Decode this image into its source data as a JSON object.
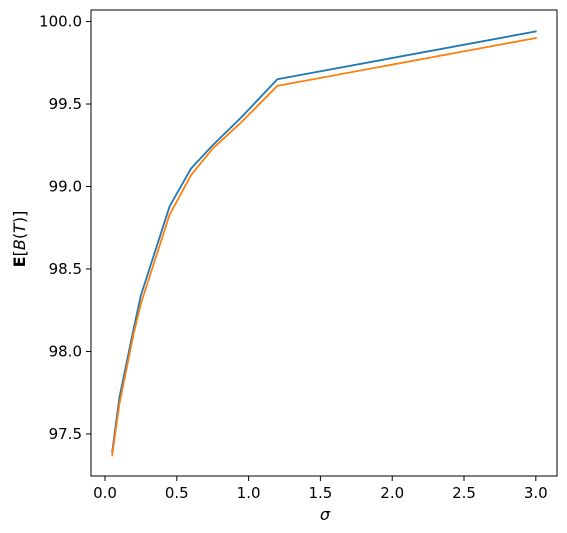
{
  "chart_data": {
    "type": "line",
    "xlim": [
      -0.0975,
      3.1475
    ],
    "ylim": [
      97.245,
      100.07
    ],
    "xticks": [
      "0.0",
      "0.5",
      "1.0",
      "1.5",
      "2.0",
      "2.5",
      "3.0"
    ],
    "yticks": [
      "97.5",
      "98.0",
      "98.5",
      "99.0",
      "99.5",
      "100.0"
    ],
    "xlabel": "σ",
    "ylabel": {
      "prefix": "E",
      "open": "[",
      "var": "B",
      "paren_open": "(",
      "arg": "T",
      "paren_close": ")",
      "close": "]"
    },
    "grid": false,
    "series": [
      {
        "color": "#1f77b4",
        "x": [
          0.05,
          0.1,
          0.2,
          0.25,
          0.45,
          0.6,
          0.75,
          0.95,
          1.2,
          3.0
        ],
        "y": [
          97.39,
          97.72,
          98.14,
          98.34,
          98.88,
          99.11,
          99.25,
          99.42,
          99.65,
          99.94
        ]
      },
      {
        "color": "#ff7f0e",
        "x": [
          0.05,
          0.1,
          0.2,
          0.25,
          0.45,
          0.6,
          0.75,
          0.95,
          1.2,
          3.0
        ],
        "y": [
          97.37,
          97.68,
          98.11,
          98.29,
          98.83,
          99.07,
          99.23,
          99.39,
          99.61,
          99.9
        ]
      }
    ]
  }
}
